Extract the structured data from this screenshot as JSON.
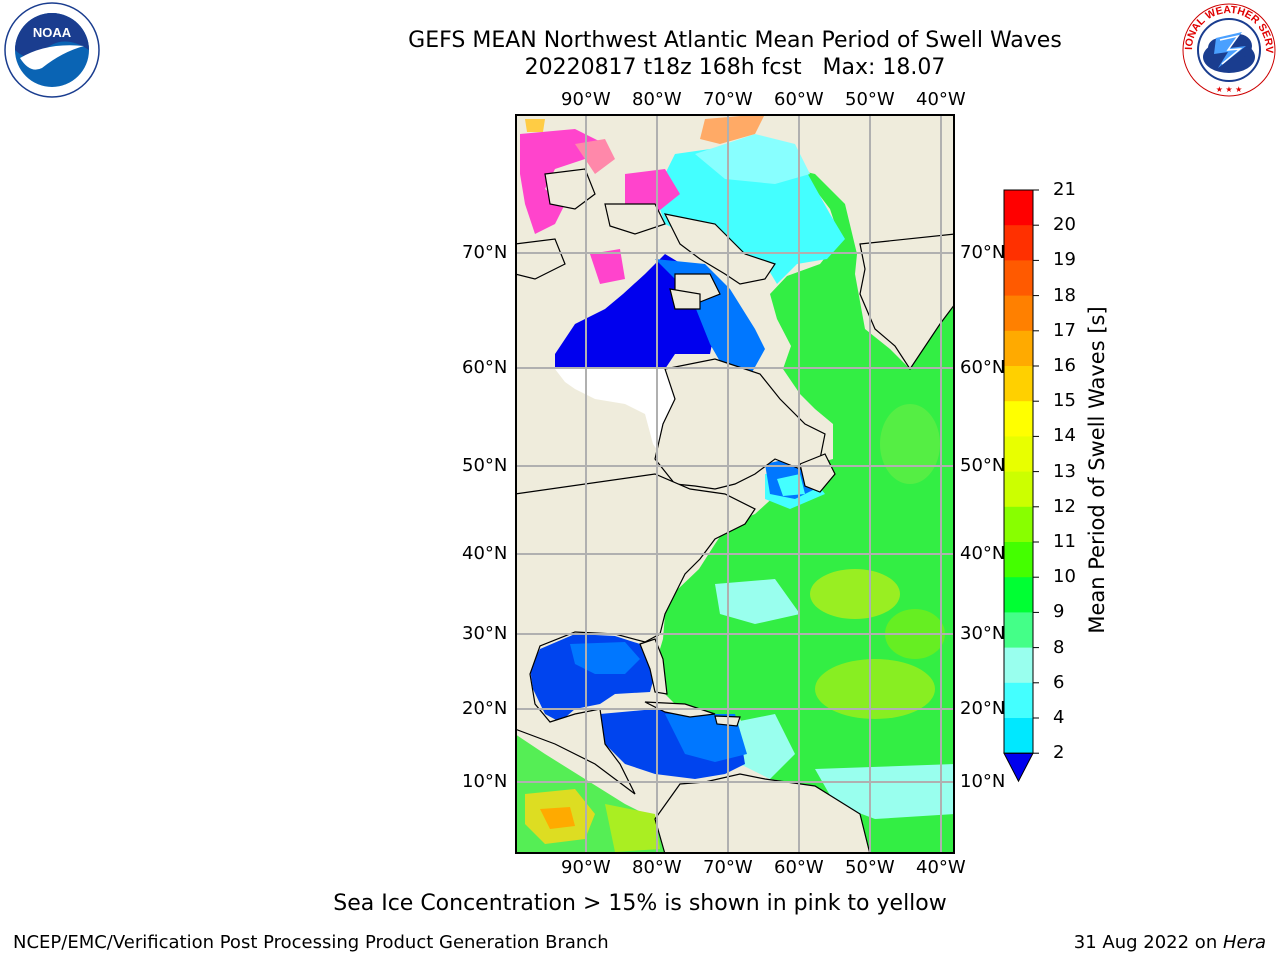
{
  "header": {
    "title": "GEFS MEAN Northwest Atlantic Mean Period of Swell Waves",
    "subtitle": "20220817 t18z 168h fcst   Max: 18.07"
  },
  "logos": {
    "noaa": {
      "name": "noaa-logo",
      "text": "NOAA"
    },
    "nws": {
      "name": "nws-logo",
      "text": "NATIONAL WEATHER SERVICE"
    }
  },
  "map": {
    "lon_labels": [
      "90°W",
      "80°W",
      "70°W",
      "60°W",
      "50°W",
      "40°W"
    ],
    "lat_labels": [
      "70°N",
      "60°N",
      "50°N",
      "40°N",
      "30°N",
      "20°N",
      "10°N"
    ],
    "colors": {
      "land": "#efecdc",
      "no_data": "#ffffff",
      "grid": "#b0b0b0",
      "coast": "#000000",
      "sea_ice": [
        "#ff44cc",
        "#ff88aa",
        "#ffaa66",
        "#ffcc44"
      ]
    }
  },
  "colorbar": {
    "label": "Mean Period of Swell Waves [s]",
    "ticks": [
      "21",
      "20",
      "19",
      "18",
      "17",
      "16",
      "15",
      "14",
      "13",
      "12",
      "11",
      "10",
      "9",
      "8",
      "6",
      "4",
      "2"
    ],
    "colors": [
      "#ff0000",
      "#ff3000",
      "#ff5a00",
      "#ff8000",
      "#ffaa00",
      "#ffd000",
      "#ffff00",
      "#e8ff00",
      "#ccff00",
      "#88ff00",
      "#44ff00",
      "#00ff33",
      "#44ff88",
      "#99ffee",
      "#44ffff",
      "#00e8ff",
      "#0077ff"
    ],
    "extend_color": "#0000ee"
  },
  "notes": {
    "sea_ice": "Sea Ice Concentration > 15% is shown in pink to yellow"
  },
  "footer": {
    "left": "NCEP/EMC/Verification Post Processing Product Generation Branch",
    "date": "31 Aug 2022 on ",
    "machine": "Hera"
  }
}
